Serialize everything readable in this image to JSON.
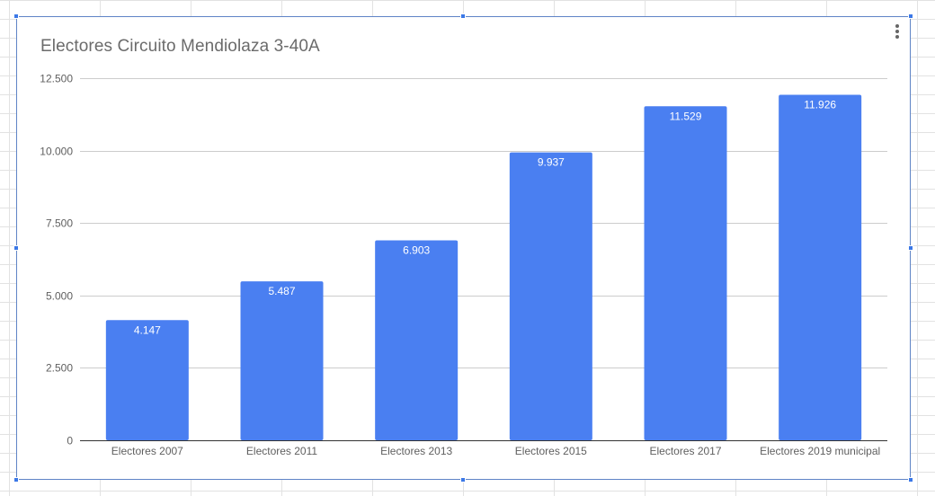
{
  "chart_menu_icon": "more-vert-icon",
  "chart_data": {
    "type": "bar",
    "title": "Electores Circuito Mendiolaza 3-40A",
    "xlabel": "",
    "ylabel": "",
    "categories": [
      "Electores 2007",
      "Electores 2011",
      "Electores 2013",
      "Electores 2015",
      "Electores 2017",
      "Electores 2019 municipal"
    ],
    "values": [
      4147,
      5487,
      6903,
      9937,
      11529,
      11926
    ],
    "data_labels": [
      "4.147",
      "5.487",
      "6.903",
      "9.937",
      "11.529",
      "11.926"
    ],
    "ylim": [
      0,
      12500
    ],
    "yticks": [
      0,
      2500,
      5000,
      7500,
      10000,
      12500
    ],
    "ytick_labels": [
      "0",
      "2.500",
      "5.000",
      "7.500",
      "10.000",
      "12.500"
    ],
    "grid": true,
    "legend": "none",
    "bar_color": "#4a7ff1",
    "grid_color": "#cccccc",
    "axis_color": "#333333"
  }
}
